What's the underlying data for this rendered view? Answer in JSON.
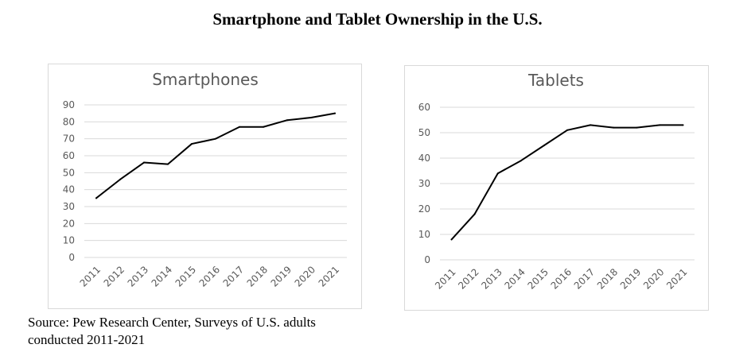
{
  "title": "Smartphone and Tablet Ownership in the U.S.",
  "source": {
    "line1": "Source: Pew Research Center, Surveys of U.S. adults",
    "line2": "conducted 2011-2021"
  },
  "chart_data": [
    {
      "type": "line",
      "title": "Smartphones",
      "xlabel": "",
      "ylabel": "",
      "categories": [
        "2011",
        "2012",
        "2013",
        "2014",
        "2015",
        "2016",
        "2017",
        "2018",
        "2019",
        "2020",
        "2021"
      ],
      "series": [
        {
          "values": [
            35,
            46,
            56,
            55,
            67,
            70,
            77,
            77,
            81,
            82.5,
            85
          ]
        }
      ],
      "ylim": [
        0,
        90
      ],
      "yticks": [
        0,
        10,
        20,
        30,
        40,
        50,
        60,
        70,
        80,
        90
      ],
      "grid": true,
      "legend": "none",
      "line_color": "#000000"
    },
    {
      "type": "line",
      "title": "Tablets",
      "xlabel": "",
      "ylabel": "",
      "categories": [
        "2011",
        "2012",
        "2013",
        "2014",
        "2015",
        "2016",
        "2017",
        "2018",
        "2019",
        "2020",
        "2021"
      ],
      "series": [
        {
          "values": [
            8,
            18,
            34,
            39,
            45,
            51,
            53,
            52,
            52,
            53,
            53
          ]
        }
      ],
      "ylim": [
        0,
        60
      ],
      "yticks": [
        0,
        10,
        20,
        30,
        40,
        50,
        60
      ],
      "grid": true,
      "legend": "none",
      "line_color": "#000000"
    }
  ]
}
